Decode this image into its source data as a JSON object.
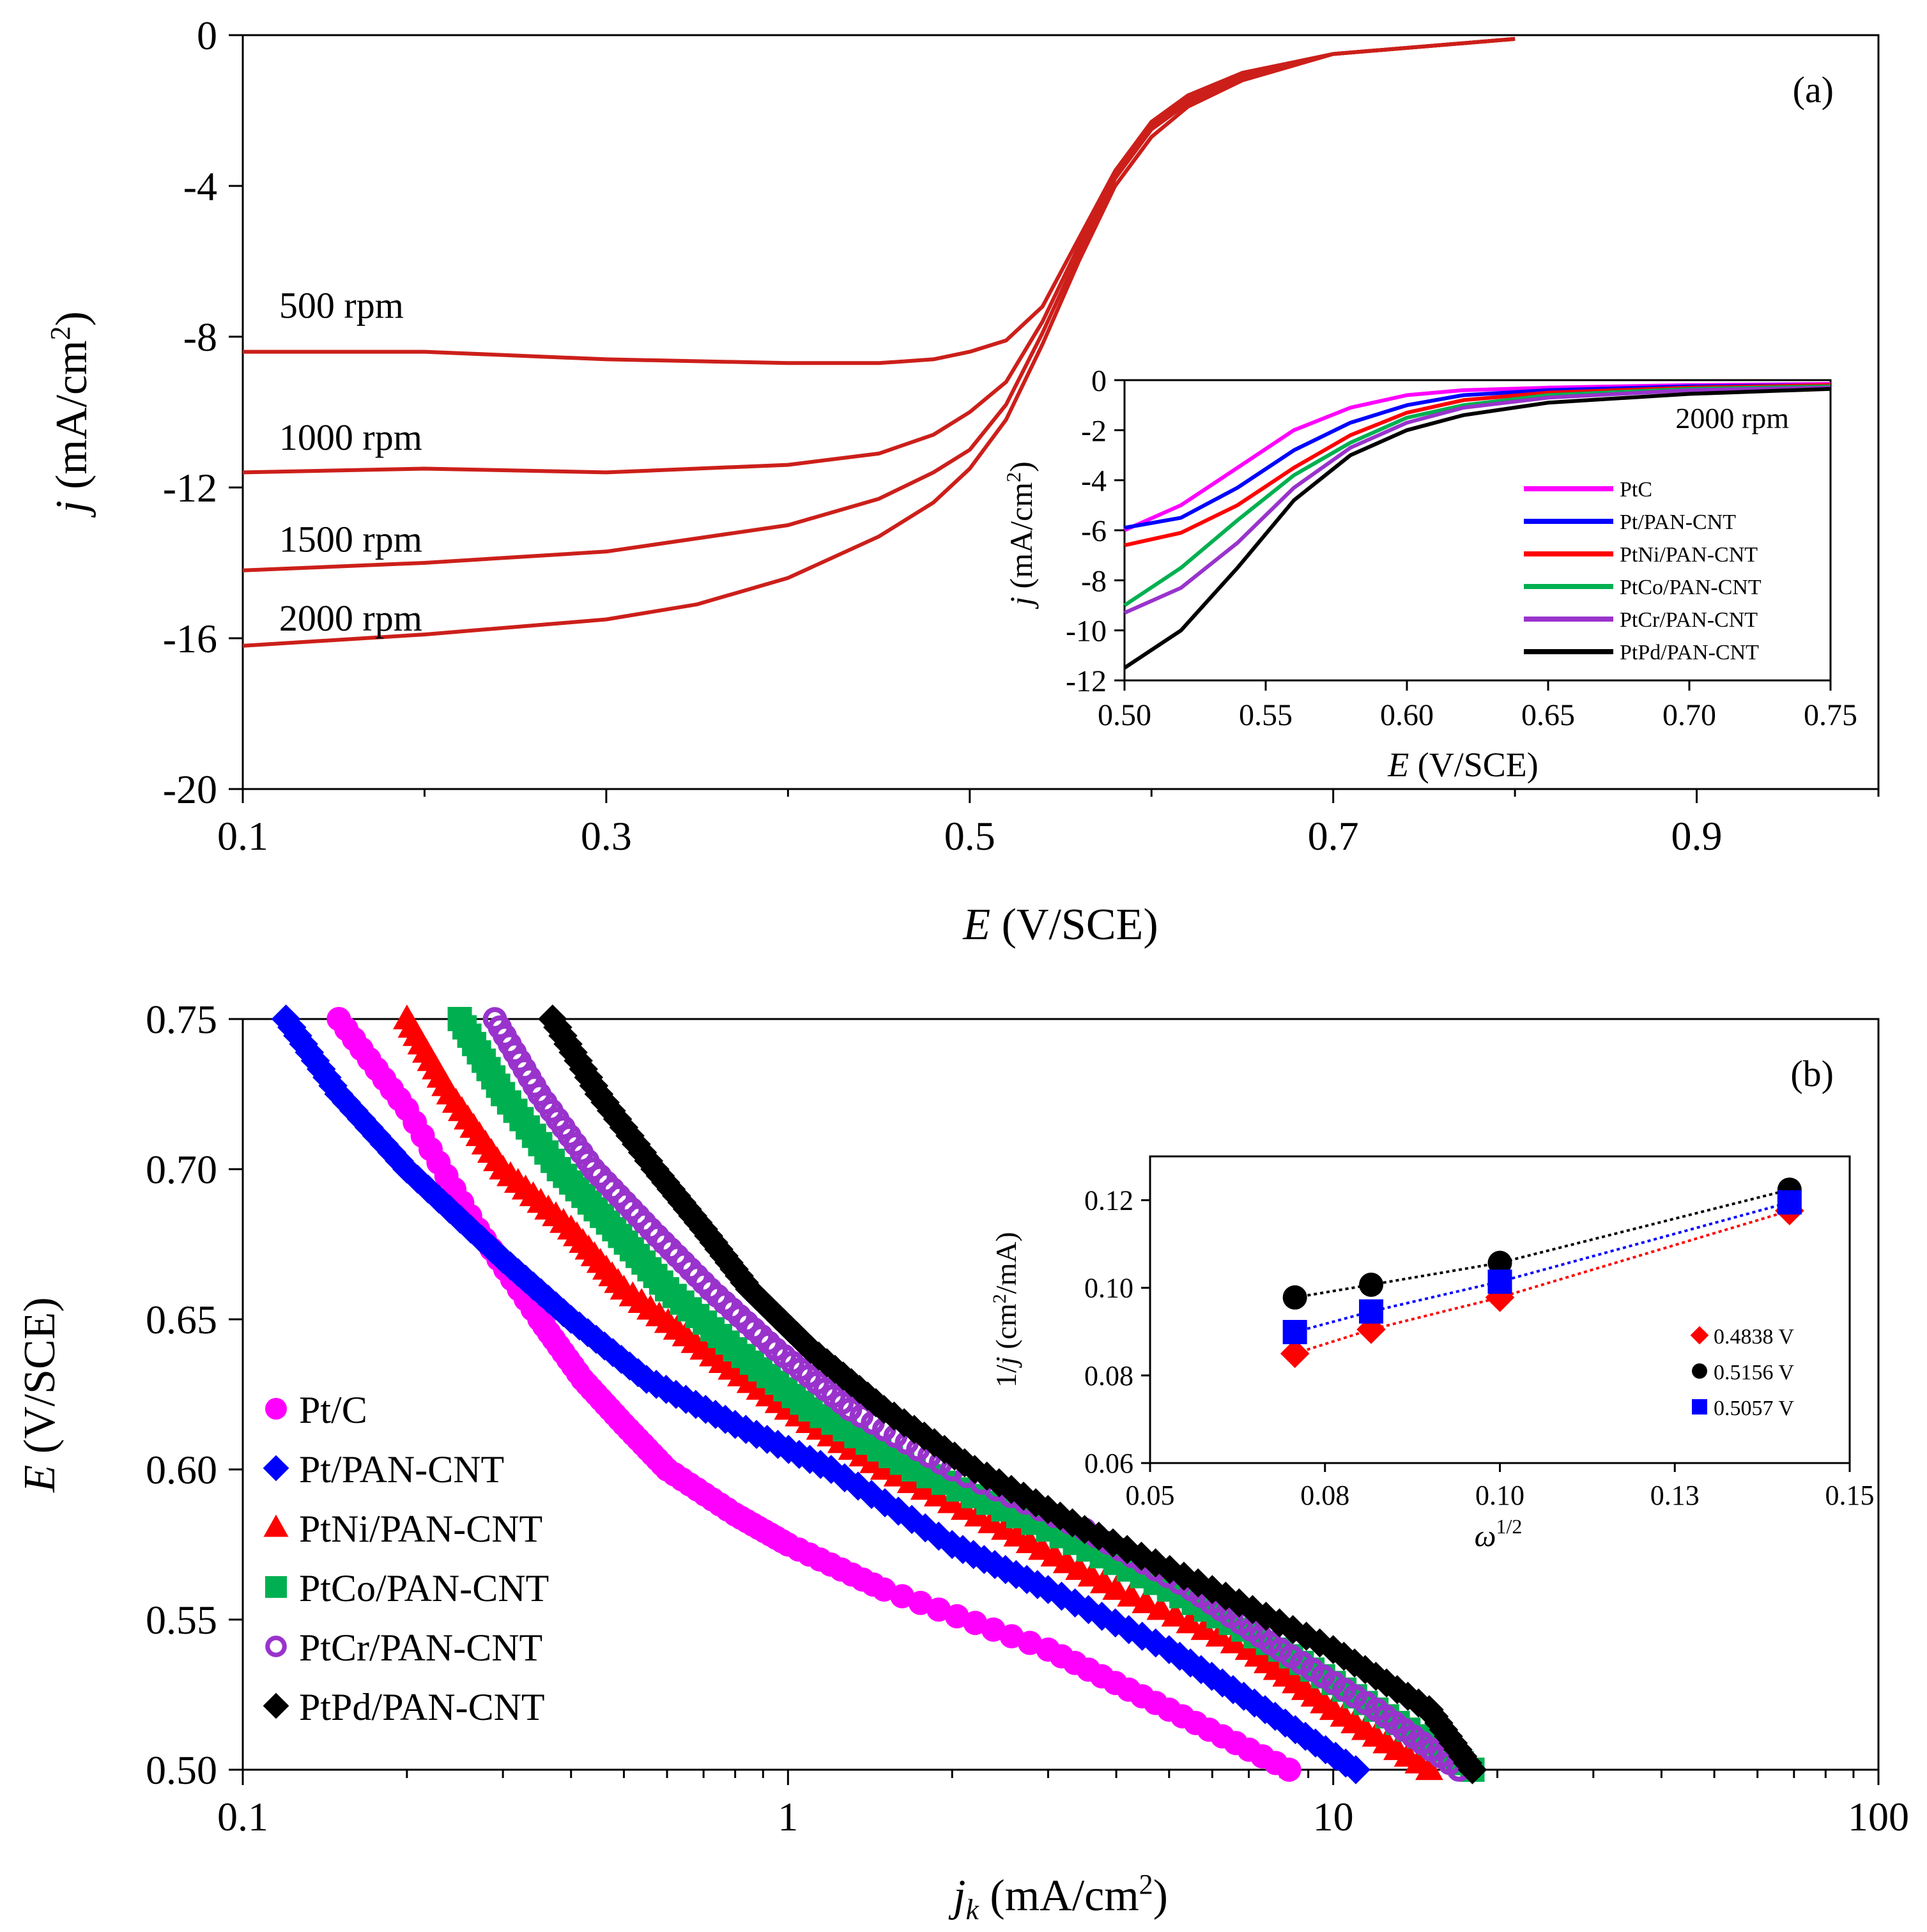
{
  "chart_data": [
    {
      "id": "a",
      "type": "line",
      "panel_label": "(a)",
      "title": "",
      "xlabel_var": "E",
      "xlabel_unit": " (V/SCE)",
      "ylabel_var": "j",
      "ylabel_unit_pre": " (mA/cm",
      "ylabel_sup": "2",
      "ylabel_unit_post": ")",
      "xlim": [
        0.1,
        1.0
      ],
      "ylim": [
        -20,
        0
      ],
      "xticks": [
        "0.1",
        "0.3",
        "0.5",
        "0.7",
        "0.9"
      ],
      "yticks": [
        "0",
        "-4",
        "-8",
        "-12",
        "-16",
        "-20"
      ],
      "color": "#cc1f1a",
      "series": [
        {
          "name": "500 rpm",
          "label": "500 rpm",
          "label_at": [
            0.12,
            -7.5
          ],
          "x": [
            0.1,
            0.2,
            0.3,
            0.4,
            0.45,
            0.48,
            0.5,
            0.52,
            0.54,
            0.56,
            0.58,
            0.6,
            0.62,
            0.65,
            0.7,
            0.8
          ],
          "y": [
            -8.4,
            -8.4,
            -8.6,
            -8.7,
            -8.7,
            -8.6,
            -8.4,
            -8.1,
            -7.2,
            -5.4,
            -3.6,
            -2.3,
            -1.6,
            -1.0,
            -0.5,
            -0.1
          ]
        },
        {
          "name": "1000 rpm",
          "label": "1000 rpm",
          "label_at": [
            0.12,
            -11.0
          ],
          "x": [
            0.1,
            0.2,
            0.3,
            0.4,
            0.45,
            0.48,
            0.5,
            0.52,
            0.54,
            0.56,
            0.58,
            0.6,
            0.62,
            0.65,
            0.7,
            0.8
          ],
          "y": [
            -11.6,
            -11.5,
            -11.6,
            -11.4,
            -11.1,
            -10.6,
            -10.0,
            -9.2,
            -7.6,
            -5.6,
            -3.7,
            -2.4,
            -1.7,
            -1.1,
            -0.5,
            -0.1
          ]
        },
        {
          "name": "1500 rpm",
          "label": "1500 rpm",
          "label_at": [
            0.12,
            -13.7
          ],
          "x": [
            0.1,
            0.2,
            0.3,
            0.4,
            0.45,
            0.48,
            0.5,
            0.52,
            0.54,
            0.56,
            0.58,
            0.6,
            0.62,
            0.65,
            0.7,
            0.8
          ],
          "y": [
            -14.2,
            -14.0,
            -13.7,
            -13.0,
            -12.3,
            -11.6,
            -11.0,
            -9.8,
            -7.9,
            -5.8,
            -3.8,
            -2.5,
            -1.8,
            -1.1,
            -0.5,
            -0.1
          ]
        },
        {
          "name": "2000 rpm",
          "label": "2000 rpm",
          "label_at": [
            0.12,
            -15.8
          ],
          "x": [
            0.1,
            0.2,
            0.3,
            0.35,
            0.4,
            0.45,
            0.48,
            0.5,
            0.52,
            0.54,
            0.56,
            0.58,
            0.6,
            0.62,
            0.65,
            0.7,
            0.8
          ],
          "y": [
            -16.2,
            -15.9,
            -15.5,
            -15.1,
            -14.4,
            -13.3,
            -12.4,
            -11.5,
            -10.2,
            -8.2,
            -6.0,
            -4.0,
            -2.7,
            -1.9,
            -1.2,
            -0.5,
            -0.1
          ]
        }
      ],
      "inset": {
        "type": "line",
        "title": "",
        "annotation": "2000 rpm",
        "xlabel_var": "E",
        "xlabel_unit": " (V/SCE)",
        "ylabel_var": "j",
        "ylabel_unit_pre": " (mA/cm",
        "ylabel_sup": "2",
        "ylabel_unit_post": ")",
        "xlim": [
          0.5,
          0.75
        ],
        "ylim": [
          -12,
          0
        ],
        "xticks": [
          "0.50",
          "0.55",
          "0.60",
          "0.65",
          "0.70",
          "0.75"
        ],
        "yticks": [
          "0",
          "-2",
          "-4",
          "-6",
          "-8",
          "-10",
          "-12"
        ],
        "legend": "lower-right",
        "series": [
          {
            "name": "PtC",
            "color": "#ff00ff",
            "x": [
              0.5,
              0.52,
              0.54,
              0.56,
              0.58,
              0.6,
              0.62,
              0.65,
              0.7,
              0.75
            ],
            "y": [
              -6.0,
              -5.0,
              -3.5,
              -2.0,
              -1.1,
              -0.6,
              -0.4,
              -0.3,
              -0.2,
              -0.15
            ]
          },
          {
            "name": "Pt/PAN-CNT",
            "color": "#0000ff",
            "x": [
              0.5,
              0.52,
              0.54,
              0.56,
              0.58,
              0.6,
              0.62,
              0.65,
              0.7,
              0.75
            ],
            "y": [
              -5.9,
              -5.5,
              -4.3,
              -2.8,
              -1.7,
              -1.0,
              -0.6,
              -0.4,
              -0.25,
              -0.2
            ]
          },
          {
            "name": "PtNi/PAN-CNT",
            "color": "#ff0000",
            "x": [
              0.5,
              0.52,
              0.54,
              0.56,
              0.58,
              0.6,
              0.62,
              0.65,
              0.7,
              0.75
            ],
            "y": [
              -6.6,
              -6.1,
              -5.0,
              -3.5,
              -2.2,
              -1.3,
              -0.8,
              -0.5,
              -0.3,
              -0.2
            ]
          },
          {
            "name": "PtCo/PAN-CNT",
            "color": "#00b050",
            "x": [
              0.5,
              0.52,
              0.54,
              0.56,
              0.58,
              0.6,
              0.62,
              0.65,
              0.7,
              0.75
            ],
            "y": [
              -9.0,
              -7.5,
              -5.6,
              -3.8,
              -2.5,
              -1.5,
              -1.0,
              -0.6,
              -0.35,
              -0.25
            ]
          },
          {
            "name": "PtCr/PAN-CNT",
            "color": "#9933cc",
            "x": [
              0.5,
              0.52,
              0.54,
              0.56,
              0.58,
              0.6,
              0.62,
              0.65,
              0.7,
              0.75
            ],
            "y": [
              -9.3,
              -8.3,
              -6.5,
              -4.3,
              -2.7,
              -1.7,
              -1.1,
              -0.7,
              -0.4,
              -0.3
            ]
          },
          {
            "name": "PtPd/PAN-CNT",
            "color": "#000000",
            "x": [
              0.5,
              0.52,
              0.54,
              0.56,
              0.58,
              0.6,
              0.62,
              0.65,
              0.7,
              0.75
            ],
            "y": [
              -11.5,
              -10.0,
              -7.5,
              -4.8,
              -3.0,
              -2.0,
              -1.4,
              -0.9,
              -0.55,
              -0.35
            ]
          }
        ]
      }
    },
    {
      "id": "b",
      "type": "scatter",
      "panel_label": "(b)",
      "title": "",
      "xscale": "log",
      "xlabel_var": "j",
      "xlabel_sub": "k",
      "xlabel_unit_pre": " (mA/cm",
      "xlabel_sup": "2",
      "xlabel_unit_post": ")",
      "ylabel_var": "E",
      "ylabel_unit": " (V/SCE)",
      "xlim": [
        0.1,
        100
      ],
      "ylim": [
        0.5,
        0.75
      ],
      "xticks": [
        "0.1",
        "1",
        "10",
        "100"
      ],
      "yticks": [
        "0.75",
        "0.70",
        "0.65",
        "0.60",
        "0.55",
        "0.50"
      ],
      "legend": "lower-left",
      "series": [
        {
          "name": "Pt/C",
          "color": "#ff00ff",
          "marker": "circle",
          "x": [
            8.3,
            5.0,
            3.0,
            1.5,
            1.0,
            0.8,
            0.6,
            0.5,
            0.42,
            0.35,
            0.27,
            0.2,
            0.15
          ],
          "y": [
            0.5,
            0.52,
            0.54,
            0.56,
            0.575,
            0.585,
            0.6,
            0.615,
            0.63,
            0.65,
            0.68,
            0.72,
            0.75
          ]
        },
        {
          "name": "Pt/PAN-CNT",
          "color": "#0000ff",
          "marker": "diamond",
          "x": [
            11.0,
            7.5,
            5.0,
            3.0,
            2.0,
            1.2,
            0.8,
            0.55,
            0.4,
            0.3,
            0.2,
            0.15,
            0.12
          ],
          "y": [
            0.5,
            0.52,
            0.54,
            0.56,
            0.575,
            0.6,
            0.615,
            0.63,
            0.65,
            0.67,
            0.7,
            0.725,
            0.75
          ]
        },
        {
          "name": "PtNi/PAN-CNT",
          "color": "#ff0000",
          "marker": "triangle",
          "x": [
            15.0,
            10.0,
            7.0,
            4.0,
            2.5,
            1.5,
            1.0,
            0.7,
            0.5,
            0.4,
            0.3,
            0.24,
            0.2
          ],
          "y": [
            0.5,
            0.52,
            0.54,
            0.56,
            0.58,
            0.6,
            0.62,
            0.64,
            0.66,
            0.68,
            0.7,
            0.725,
            0.75
          ]
        },
        {
          "name": "PtCo/PAN-CNT",
          "color": "#00b050",
          "marker": "square",
          "x": [
            18.0,
            12.0,
            8.0,
            5.0,
            3.0,
            1.7,
            1.1,
            0.8,
            0.6,
            0.48,
            0.38,
            0.3,
            0.25
          ],
          "y": [
            0.5,
            0.52,
            0.54,
            0.56,
            0.58,
            0.6,
            0.62,
            0.64,
            0.66,
            0.68,
            0.7,
            0.725,
            0.75
          ]
        },
        {
          "name": "PtCr/PAN-CNT",
          "color": "#9933cc",
          "marker": "ring",
          "x": [
            17.0,
            12.0,
            8.0,
            5.5,
            3.5,
            2.0,
            1.3,
            0.95,
            0.72,
            0.56,
            0.44,
            0.35,
            0.29
          ],
          "y": [
            0.5,
            0.52,
            0.54,
            0.56,
            0.58,
            0.6,
            0.62,
            0.64,
            0.66,
            0.68,
            0.7,
            0.725,
            0.75
          ]
        },
        {
          "name": "PtPd/PAN-CNT",
          "color": "#000000",
          "marker": "diamond",
          "x": [
            18.0,
            15.0,
            10.0,
            6.0,
            3.5,
            2.2,
            1.5,
            1.1,
            0.85,
            0.7,
            0.57,
            0.45,
            0.37
          ],
          "y": [
            0.5,
            0.52,
            0.54,
            0.56,
            0.58,
            0.6,
            0.62,
            0.64,
            0.66,
            0.68,
            0.7,
            0.725,
            0.75
          ]
        }
      ],
      "inset": {
        "type": "scatter",
        "title": "",
        "xlabel_var": "ω",
        "xlabel_sup": "1/2",
        "ylabel_pre": "1/",
        "ylabel_var": "j",
        "ylabel_unit_pre": " (cm",
        "ylabel_sup": "2",
        "ylabel_unit_post": "/mA)",
        "xlim": [
          0.05,
          0.15
        ],
        "ylim": [
          0.06,
          0.13
        ],
        "xticks": [
          "0.05",
          "0.08",
          "0.10",
          "0.13",
          "0.15"
        ],
        "yticks": [
          "0.12",
          "0.10",
          "0.08",
          "0.06"
        ],
        "legend": "lower-right",
        "series": [
          {
            "name": "0.4838 V",
            "color": "#ff0000",
            "marker": "diamond",
            "x": [
              0.0707,
              0.0816,
              0.1,
              0.1414
            ],
            "y": [
              0.085,
              0.0905,
              0.0978,
              0.1176
            ]
          },
          {
            "name": "0.5156 V",
            "color": "#000000",
            "marker": "circle",
            "x": [
              0.0707,
              0.0816,
              0.1,
              0.1414
            ],
            "y": [
              0.0978,
              0.1007,
              0.1057,
              0.1224
            ]
          },
          {
            "name": "0.5057 V",
            "color": "#0000ff",
            "marker": "square",
            "x": [
              0.0707,
              0.0816,
              0.1,
              0.1414
            ],
            "y": [
              0.0899,
              0.0946,
              0.1014,
              0.1195
            ]
          }
        ]
      }
    }
  ]
}
